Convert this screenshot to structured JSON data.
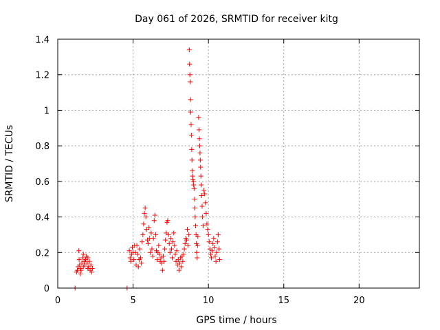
{
  "chart_data": {
    "type": "scatter",
    "title": "Day 061 of 2026, SRMTID for receiver kitg",
    "xlabel": "GPS time / hours",
    "ylabel": "SRMTID / TECUs",
    "xlim": [
      0,
      24
    ],
    "ylim": [
      0,
      1.4
    ],
    "xticks": [
      0,
      5,
      10,
      15,
      20
    ],
    "xtick_labels": [
      "0",
      "5",
      "10",
      "15",
      "20"
    ],
    "yticks": [
      0,
      0.2,
      0.4,
      0.6,
      0.8,
      1.0,
      1.2,
      1.4
    ],
    "ytick_labels": [
      "0",
      "0.2",
      "0.4",
      "0.6",
      "0.8",
      "1",
      "1.2",
      "1.4"
    ],
    "grid": true,
    "marker": "plus",
    "color": "#ff0000",
    "series": [
      {
        "name": "SRMTID",
        "points": [
          [
            1.15,
            0.0
          ],
          [
            4.6,
            0.0
          ],
          [
            1.25,
            0.09
          ],
          [
            1.3,
            0.1
          ],
          [
            1.35,
            0.12
          ],
          [
            1.4,
            0.21
          ],
          [
            1.42,
            0.16
          ],
          [
            1.45,
            0.13
          ],
          [
            1.5,
            0.11
          ],
          [
            1.55,
            0.1
          ],
          [
            1.6,
            0.14
          ],
          [
            1.65,
            0.17
          ],
          [
            1.7,
            0.12
          ],
          [
            1.75,
            0.15
          ],
          [
            1.8,
            0.13
          ],
          [
            1.85,
            0.16
          ],
          [
            1.9,
            0.18
          ],
          [
            1.95,
            0.14
          ],
          [
            2.0,
            0.17
          ],
          [
            2.05,
            0.12
          ],
          [
            2.1,
            0.15
          ],
          [
            2.15,
            0.1
          ],
          [
            2.2,
            0.13
          ],
          [
            2.25,
            0.09
          ],
          [
            2.3,
            0.11
          ],
          [
            1.5,
            0.08
          ],
          [
            1.7,
            0.19
          ],
          [
            2.0,
            0.11
          ],
          [
            4.75,
            0.21
          ],
          [
            4.8,
            0.17
          ],
          [
            4.85,
            0.15
          ],
          [
            4.9,
            0.19
          ],
          [
            4.95,
            0.23
          ],
          [
            5.0,
            0.2
          ],
          [
            5.05,
            0.16
          ],
          [
            5.1,
            0.24
          ],
          [
            5.15,
            0.2
          ],
          [
            5.2,
            0.13
          ],
          [
            5.25,
            0.24
          ],
          [
            5.3,
            0.19
          ],
          [
            5.35,
            0.12
          ],
          [
            5.4,
            0.16
          ],
          [
            5.45,
            0.22
          ],
          [
            5.5,
            0.17
          ],
          [
            5.55,
            0.14
          ],
          [
            5.6,
            0.26
          ],
          [
            5.65,
            0.3
          ],
          [
            5.7,
            0.36
          ],
          [
            5.75,
            0.42
          ],
          [
            5.8,
            0.45
          ],
          [
            5.85,
            0.4
          ],
          [
            5.9,
            0.33
          ],
          [
            5.95,
            0.27
          ],
          [
            6.0,
            0.25
          ],
          [
            6.05,
            0.34
          ],
          [
            6.1,
            0.28
          ],
          [
            6.15,
            0.2
          ],
          [
            6.2,
            0.31
          ],
          [
            6.25,
            0.22
          ],
          [
            6.3,
            0.18
          ],
          [
            6.35,
            0.28
          ],
          [
            6.4,
            0.38
          ],
          [
            6.45,
            0.41
          ],
          [
            6.5,
            0.3
          ],
          [
            6.55,
            0.21
          ],
          [
            6.6,
            0.16
          ],
          [
            6.65,
            0.2
          ],
          [
            6.7,
            0.24
          ],
          [
            6.75,
            0.19
          ],
          [
            6.8,
            0.15
          ],
          [
            6.85,
            0.17
          ],
          [
            6.9,
            0.14
          ],
          [
            6.95,
            0.1
          ],
          [
            7.0,
            0.18
          ],
          [
            7.05,
            0.15
          ],
          [
            7.1,
            0.22
          ],
          [
            7.15,
            0.27
          ],
          [
            7.2,
            0.31
          ],
          [
            7.25,
            0.37
          ],
          [
            7.3,
            0.38
          ],
          [
            7.35,
            0.3
          ],
          [
            7.4,
            0.25
          ],
          [
            7.45,
            0.2
          ],
          [
            7.5,
            0.28
          ],
          [
            7.55,
            0.22
          ],
          [
            7.6,
            0.17
          ],
          [
            7.65,
            0.26
          ],
          [
            7.7,
            0.31
          ],
          [
            7.75,
            0.24
          ],
          [
            7.8,
            0.19
          ],
          [
            7.85,
            0.15
          ],
          [
            7.9,
            0.21
          ],
          [
            7.95,
            0.13
          ],
          [
            8.0,
            0.16
          ],
          [
            8.05,
            0.1
          ],
          [
            8.1,
            0.14
          ],
          [
            8.15,
            0.17
          ],
          [
            8.2,
            0.12
          ],
          [
            8.25,
            0.18
          ],
          [
            8.3,
            0.15
          ],
          [
            8.35,
            0.19
          ],
          [
            8.4,
            0.22
          ],
          [
            8.45,
            0.25
          ],
          [
            8.5,
            0.28
          ],
          [
            8.55,
            0.27
          ],
          [
            8.6,
            0.33
          ],
          [
            8.65,
            0.24
          ],
          [
            8.7,
            0.3
          ],
          [
            8.73,
            1.34
          ],
          [
            8.75,
            1.26
          ],
          [
            8.77,
            1.2
          ],
          [
            8.79,
            1.16
          ],
          [
            8.81,
            1.06
          ],
          [
            8.83,
            0.99
          ],
          [
            8.85,
            0.92
          ],
          [
            8.87,
            0.86
          ],
          [
            8.89,
            0.78
          ],
          [
            8.91,
            0.72
          ],
          [
            8.93,
            0.66
          ],
          [
            8.95,
            0.63
          ],
          [
            8.97,
            0.61
          ],
          [
            9.0,
            0.6
          ],
          [
            9.02,
            0.58
          ],
          [
            9.05,
            0.56
          ],
          [
            9.08,
            0.5
          ],
          [
            9.1,
            0.45
          ],
          [
            9.12,
            0.4
          ],
          [
            9.15,
            0.35
          ],
          [
            9.18,
            0.3
          ],
          [
            9.2,
            0.25
          ],
          [
            9.22,
            0.2
          ],
          [
            9.25,
            0.17
          ],
          [
            9.28,
            0.24
          ],
          [
            9.3,
            0.29
          ],
          [
            9.35,
            0.96
          ],
          [
            9.38,
            0.89
          ],
          [
            9.4,
            0.84
          ],
          [
            9.42,
            0.8
          ],
          [
            9.44,
            0.76
          ],
          [
            9.46,
            0.72
          ],
          [
            9.48,
            0.68
          ],
          [
            9.5,
            0.63
          ],
          [
            9.52,
            0.58
          ],
          [
            9.55,
            0.52
          ],
          [
            9.58,
            0.46
          ],
          [
            9.6,
            0.4
          ],
          [
            9.65,
            0.35
          ],
          [
            9.7,
            0.55
          ],
          [
            9.75,
            0.53
          ],
          [
            9.8,
            0.48
          ],
          [
            9.85,
            0.42
          ],
          [
            9.9,
            0.36
          ],
          [
            9.95,
            0.33
          ],
          [
            10.0,
            0.3
          ],
          [
            10.05,
            0.26
          ],
          [
            10.1,
            0.22
          ],
          [
            10.15,
            0.19
          ],
          [
            10.2,
            0.17
          ],
          [
            10.25,
            0.21
          ],
          [
            10.3,
            0.25
          ],
          [
            10.35,
            0.28
          ],
          [
            10.4,
            0.23
          ],
          [
            10.45,
            0.18
          ],
          [
            10.5,
            0.15
          ],
          [
            10.55,
            0.2
          ],
          [
            10.6,
            0.26
          ],
          [
            10.65,
            0.3
          ],
          [
            10.7,
            0.22
          ],
          [
            10.75,
            0.16
          ]
        ]
      }
    ]
  }
}
